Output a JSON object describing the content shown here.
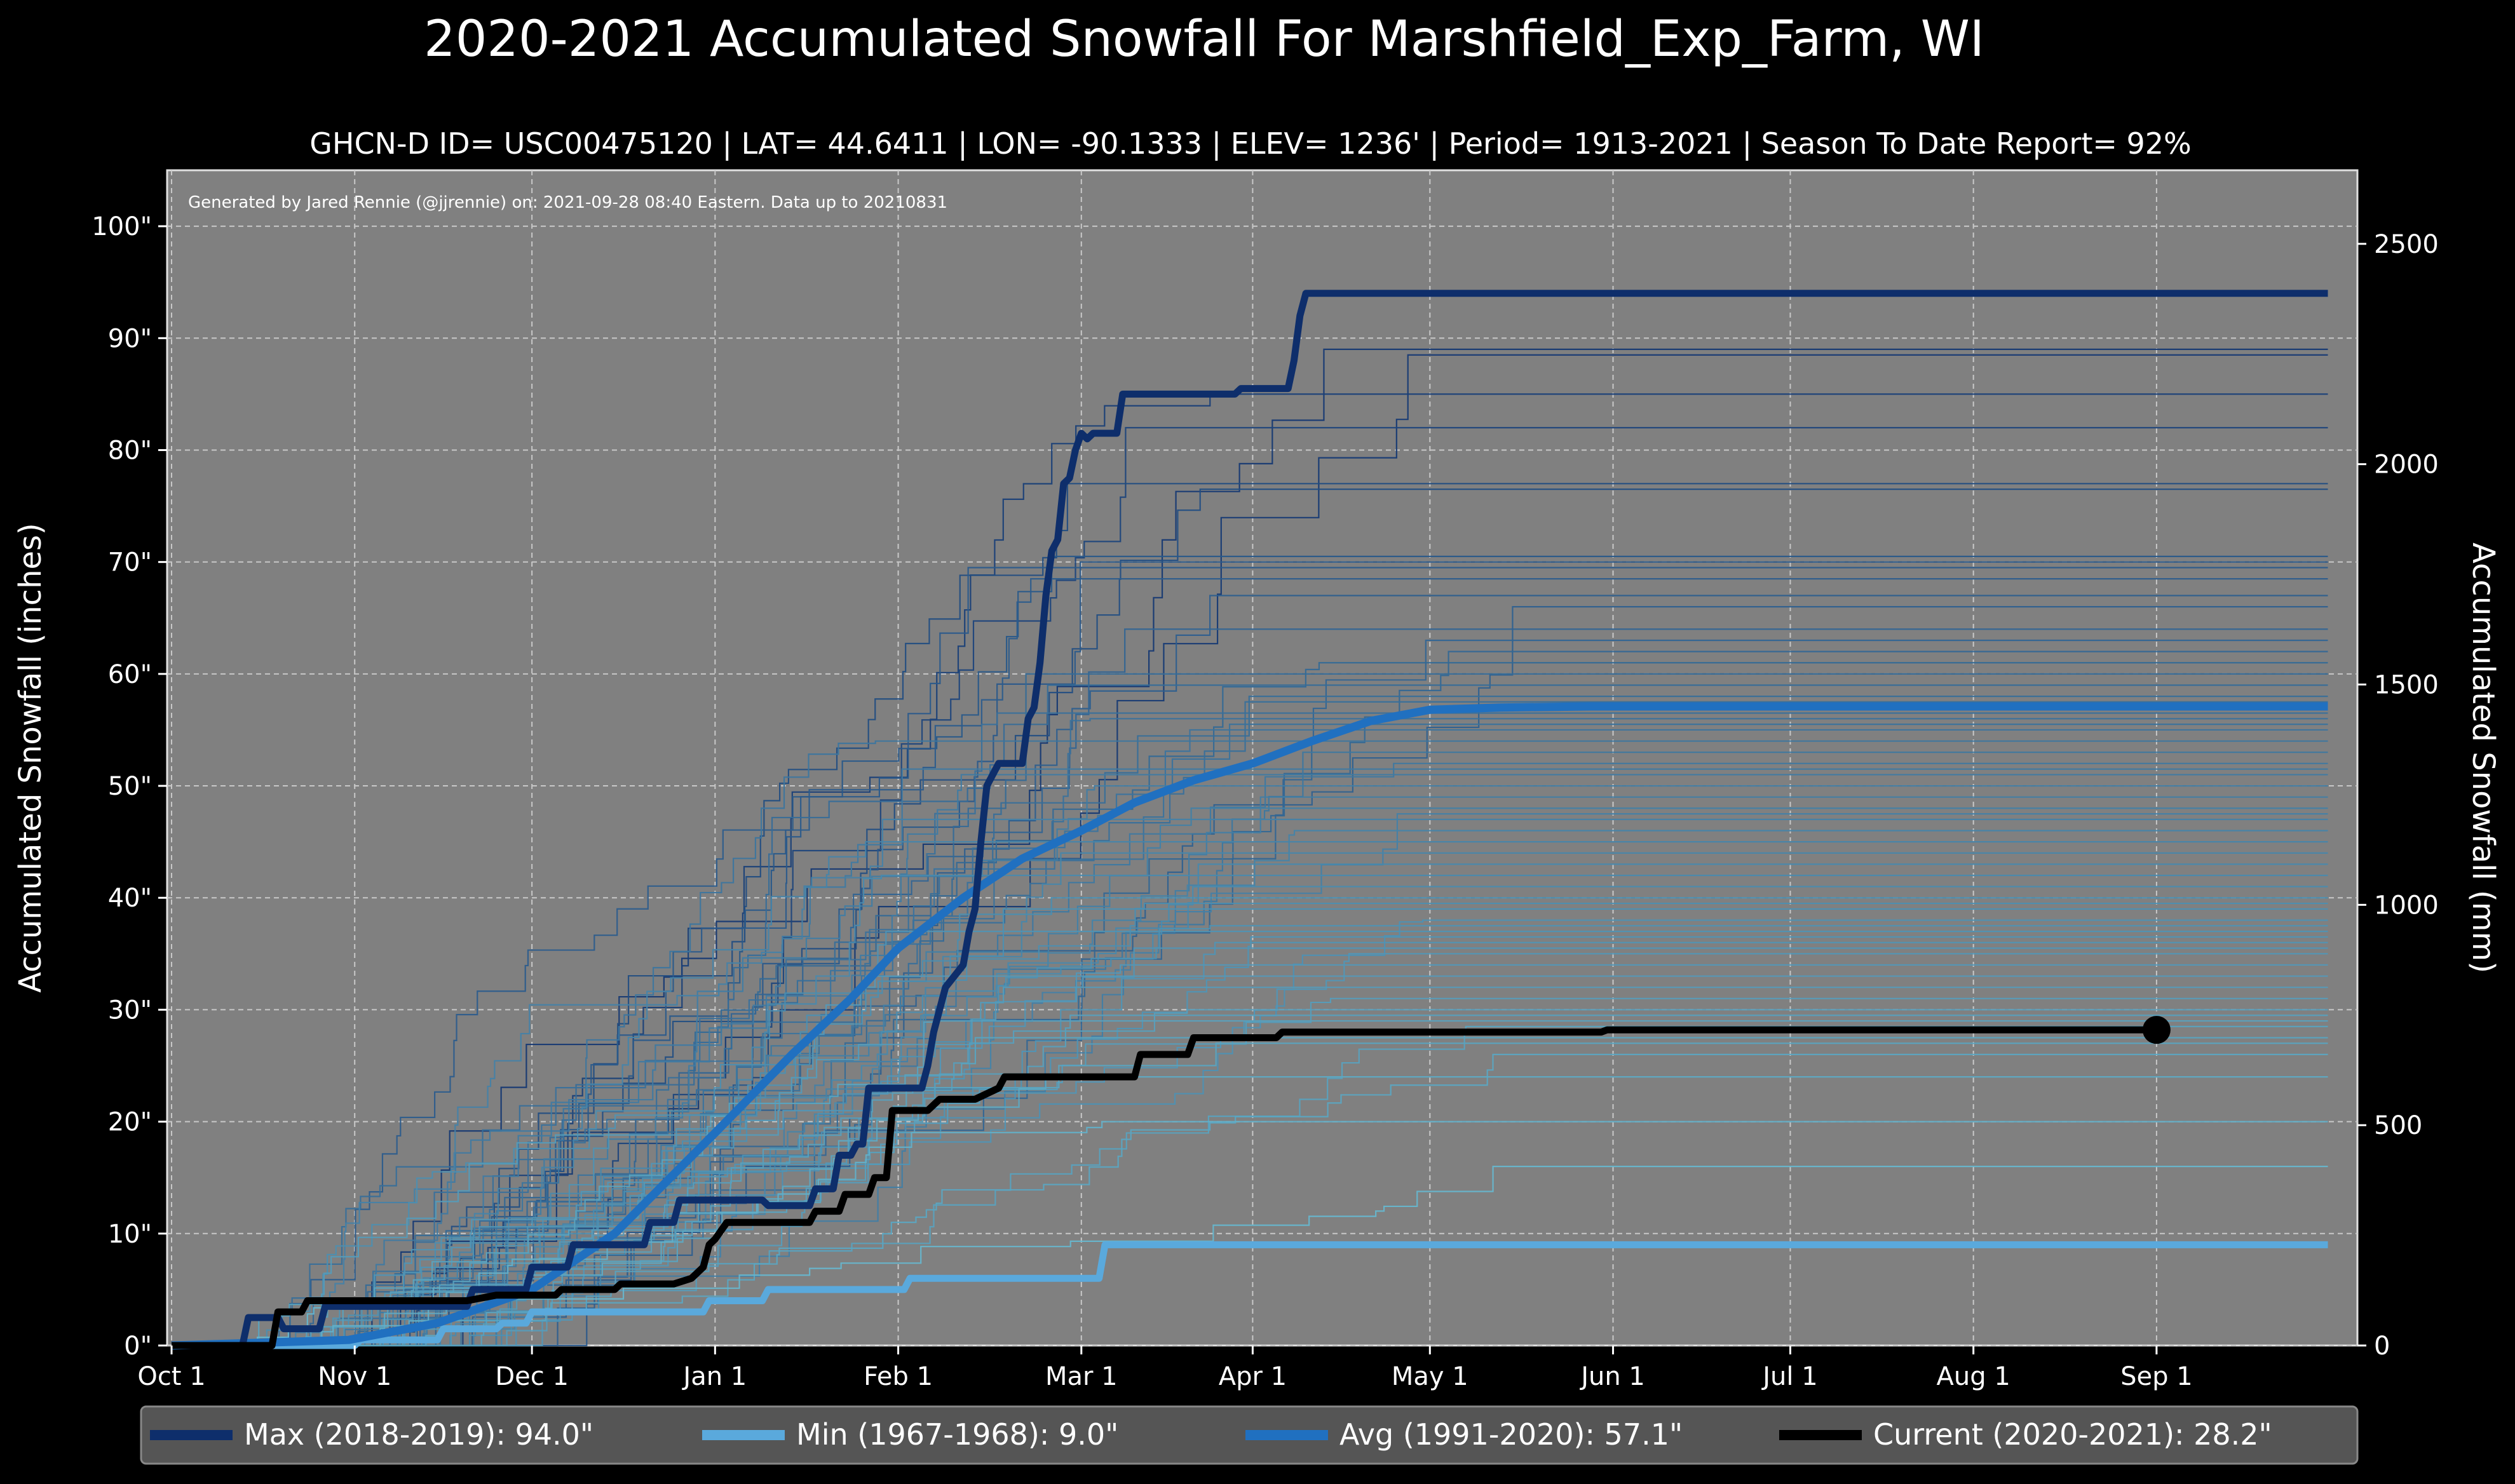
{
  "chart_data": {
    "type": "line",
    "title": "2020-2021 Accumulated Snowfall For Marshfield_Exp_Farm, WI",
    "subtitle": "GHCN-D ID= USC00475120 | LAT= 44.6411 | LON= -90.1333 | ELEV= 1236' | Period= 1913-2021 | Season To Date Report= 92%",
    "credit": "Generated by Jared Rennie (@jjrennie) on: 2021-09-28 08:40 Eastern. Data up to 20210831",
    "ylabel": "Accumulated Snowfall (inches)",
    "ylabel_right": "Accumulated Snowfall (mm)",
    "x_domain_days": [
      0,
      365
    ],
    "ylim": [
      0,
      105
    ],
    "ylim_right_mm": [
      0,
      2667
    ],
    "grid": true,
    "x_ticks": [
      {
        "label": "Oct 1",
        "day": 0
      },
      {
        "label": "Nov 1",
        "day": 31
      },
      {
        "label": "Dec 1",
        "day": 61
      },
      {
        "label": "Jan 1",
        "day": 92
      },
      {
        "label": "Feb 1",
        "day": 123
      },
      {
        "label": "Mar 1",
        "day": 154
      },
      {
        "label": "Apr 1",
        "day": 183
      },
      {
        "label": "May 1",
        "day": 213
      },
      {
        "label": "Jun 1",
        "day": 244
      },
      {
        "label": "Jul 1",
        "day": 274
      },
      {
        "label": "Aug 1",
        "day": 305
      },
      {
        "label": "Sep 1",
        "day": 336
      }
    ],
    "y_ticks": [
      {
        "label": "0\"",
        "value": 0
      },
      {
        "label": "10\"",
        "value": 10
      },
      {
        "label": "20\"",
        "value": 20
      },
      {
        "label": "30\"",
        "value": 30
      },
      {
        "label": "40\"",
        "value": 40
      },
      {
        "label": "50\"",
        "value": 50
      },
      {
        "label": "60\"",
        "value": 60
      },
      {
        "label": "70\"",
        "value": 70
      },
      {
        "label": "80\"",
        "value": 80
      },
      {
        "label": "90\"",
        "value": 90
      },
      {
        "label": "100\"",
        "value": 100
      }
    ],
    "y_ticks_right": [
      {
        "label": "0",
        "value": 0
      },
      {
        "label": "500",
        "value": 500
      },
      {
        "label": "1000",
        "value": 1000
      },
      {
        "label": "1500",
        "value": 1500
      },
      {
        "label": "2000",
        "value": 2000
      },
      {
        "label": "2500",
        "value": 2500
      }
    ],
    "legend_position": "bottom",
    "legend": [
      {
        "label": "Max (2018-2019):   94.0\"",
        "color": "#0e2e6b"
      },
      {
        "label": "Min (1967-1968):    9.0\"",
        "color": "#5aa9dc"
      },
      {
        "label": "Avg (1991-2020):   57.1\"",
        "color": "#2070c0"
      },
      {
        "label": "Current (2020-2021):   28.2\"",
        "color": "#000000"
      }
    ],
    "highlight_series": [
      {
        "name": "Max (2018-2019)",
        "color": "#0e2e6b",
        "width": 11,
        "points": [
          [
            0,
            0
          ],
          [
            12,
            0
          ],
          [
            13,
            2.5
          ],
          [
            18,
            2.5
          ],
          [
            19,
            1.5
          ],
          [
            25,
            1.5
          ],
          [
            26,
            3.5
          ],
          [
            50,
            3.5
          ],
          [
            51,
            5
          ],
          [
            60,
            5
          ],
          [
            61,
            7
          ],
          [
            67,
            7
          ],
          [
            68,
            9
          ],
          [
            80,
            9
          ],
          [
            81,
            11
          ],
          [
            85,
            11
          ],
          [
            86,
            13
          ],
          [
            100,
            13
          ],
          [
            101,
            12.5
          ],
          [
            108,
            12.5
          ],
          [
            109,
            14
          ],
          [
            112,
            14
          ],
          [
            113,
            17
          ],
          [
            115,
            17
          ],
          [
            116,
            18
          ],
          [
            117,
            18
          ],
          [
            118,
            23
          ],
          [
            127,
            23
          ],
          [
            128,
            25
          ],
          [
            129,
            28
          ],
          [
            130,
            30
          ],
          [
            131,
            32
          ],
          [
            134,
            34
          ],
          [
            135,
            37
          ],
          [
            136,
            39
          ],
          [
            137,
            45
          ],
          [
            138,
            50
          ],
          [
            139,
            51
          ],
          [
            140,
            52
          ],
          [
            144,
            52
          ],
          [
            145,
            56
          ],
          [
            146,
            57
          ],
          [
            147,
            61
          ],
          [
            148,
            67
          ],
          [
            149,
            71
          ],
          [
            150,
            72
          ],
          [
            151,
            77
          ],
          [
            152,
            77.5
          ],
          [
            153,
            80
          ],
          [
            154,
            81.5
          ],
          [
            155,
            81
          ],
          [
            156,
            81.5
          ],
          [
            160,
            81.5
          ],
          [
            161,
            85
          ],
          [
            171,
            85
          ],
          [
            180,
            85
          ],
          [
            181,
            85.5
          ],
          [
            189,
            85.5
          ],
          [
            190,
            88
          ],
          [
            191,
            92
          ],
          [
            192,
            94
          ],
          [
            365,
            94
          ]
        ]
      },
      {
        "name": "Min (1967-1968)",
        "color": "#5aa9dc",
        "width": 11,
        "points": [
          [
            0,
            0
          ],
          [
            31,
            0
          ],
          [
            32,
            0.5
          ],
          [
            45,
            0.5
          ],
          [
            46,
            1.5
          ],
          [
            55,
            1.5
          ],
          [
            56,
            2
          ],
          [
            60,
            2
          ],
          [
            61,
            3
          ],
          [
            90,
            3
          ],
          [
            91,
            4
          ],
          [
            100,
            4
          ],
          [
            101,
            5
          ],
          [
            124,
            5
          ],
          [
            125,
            6
          ],
          [
            157,
            6
          ],
          [
            158,
            9
          ],
          [
            365,
            9
          ]
        ]
      },
      {
        "name": "Avg (1991-2020)",
        "color": "#2070c0",
        "width": 13,
        "points": [
          [
            0,
            0
          ],
          [
            30,
            0.5
          ],
          [
            45,
            2
          ],
          [
            61,
            5
          ],
          [
            75,
            10
          ],
          [
            92,
            19
          ],
          [
            105,
            26
          ],
          [
            115,
            31
          ],
          [
            123,
            35.5
          ],
          [
            134,
            40
          ],
          [
            144,
            43.5
          ],
          [
            154,
            46
          ],
          [
            163,
            48.5
          ],
          [
            173,
            50.5
          ],
          [
            183,
            52
          ],
          [
            193,
            54
          ],
          [
            203,
            55.8
          ],
          [
            210,
            56.5
          ],
          [
            213,
            56.8
          ],
          [
            225,
            57
          ],
          [
            240,
            57.1
          ],
          [
            365,
            57.1
          ]
        ]
      },
      {
        "name": "Current (2020-2021)",
        "color": "#000000",
        "width": 11,
        "points": [
          [
            0,
            0
          ],
          [
            17,
            0
          ],
          [
            18,
            3
          ],
          [
            22,
            3
          ],
          [
            23,
            4
          ],
          [
            50,
            4
          ],
          [
            55,
            4.5
          ],
          [
            65,
            4.5
          ],
          [
            66,
            5
          ],
          [
            75,
            5
          ],
          [
            76,
            5.5
          ],
          [
            85,
            5.5
          ],
          [
            88,
            6
          ],
          [
            90,
            7
          ],
          [
            91,
            9
          ],
          [
            92,
            9.5
          ],
          [
            94,
            11
          ],
          [
            108,
            11
          ],
          [
            109,
            12
          ],
          [
            113,
            12
          ],
          [
            114,
            13.5
          ],
          [
            118,
            13.5
          ],
          [
            119,
            15
          ],
          [
            121,
            15
          ],
          [
            122,
            21
          ],
          [
            128,
            21
          ],
          [
            130,
            22
          ],
          [
            136,
            22
          ],
          [
            140,
            23
          ],
          [
            141,
            24
          ],
          [
            160,
            24
          ],
          [
            163,
            24
          ],
          [
            164,
            26
          ],
          [
            172,
            26
          ],
          [
            173,
            27.5
          ],
          [
            183,
            27.5
          ],
          [
            187,
            27.5
          ],
          [
            188,
            28
          ],
          [
            242,
            28
          ],
          [
            243,
            28.2
          ],
          [
            336,
            28.2
          ]
        ],
        "end_marker": true
      }
    ],
    "background_envelope": {
      "series_count": 90,
      "final_values_inches": [
        89,
        88.5,
        85,
        82,
        77,
        76.5,
        70.5,
        70,
        69.5,
        68.5,
        67,
        66,
        64,
        63,
        62,
        61,
        60,
        59,
        58,
        57.5,
        56.5,
        56,
        55.5,
        55,
        54,
        53,
        52,
        51.5,
        51,
        50,
        49,
        48,
        47.5,
        47,
        46,
        45,
        44,
        43,
        42,
        41,
        40,
        39.5,
        39,
        38,
        37.5,
        37,
        36.5,
        36,
        35.5,
        35,
        34,
        33,
        32,
        31,
        30,
        29.5,
        29,
        28.5,
        27.5,
        27,
        26,
        24,
        20,
        16
      ]
    }
  }
}
